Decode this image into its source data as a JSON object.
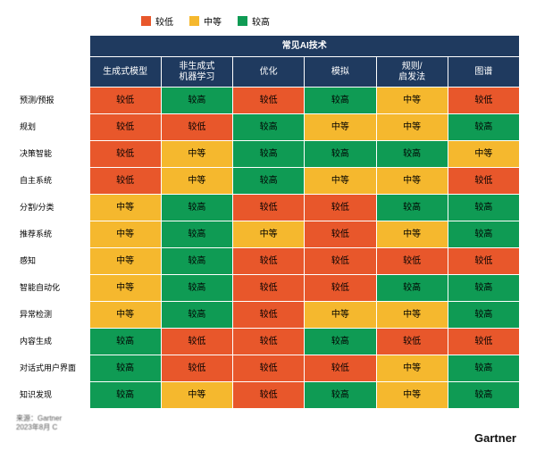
{
  "type": "heatmap-table",
  "colors": {
    "low": "#e8572b",
    "mid": "#f5b82e",
    "high": "#0f9b54",
    "header_bg": "#1f3a5f",
    "header_fg": "#ffffff",
    "border": "#ffffff",
    "background": "#ffffff"
  },
  "fontsize": {
    "cell": 10,
    "rowhead": 9,
    "legend": 10,
    "footer": 8,
    "brand": 13
  },
  "legend": {
    "items": [
      {
        "label": "较低",
        "color": "#e8572b"
      },
      {
        "label": "中等",
        "color": "#f5b82e"
      },
      {
        "label": "较高",
        "color": "#0f9b54"
      }
    ]
  },
  "superheader": "常见AI技术",
  "columns": [
    "生成式模型",
    "非生成式\n机器学习",
    "优化",
    "模拟",
    "规则/\n启发法",
    "图谱"
  ],
  "rows": [
    {
      "label": "预测/预报",
      "cells": [
        "较低",
        "较高",
        "较低",
        "较高",
        "中等",
        "较低"
      ]
    },
    {
      "label": "规划",
      "cells": [
        "较低",
        "较低",
        "较高",
        "中等",
        "中等",
        "较高"
      ]
    },
    {
      "label": "决策智能",
      "cells": [
        "较低",
        "中等",
        "较高",
        "较高",
        "较高",
        "中等"
      ]
    },
    {
      "label": "自主系统",
      "cells": [
        "较低",
        "中等",
        "较高",
        "中等",
        "中等",
        "较低"
      ]
    },
    {
      "label": "分割/分类",
      "cells": [
        "中等",
        "较高",
        "较低",
        "较低",
        "较高",
        "较高"
      ]
    },
    {
      "label": "推荐系统",
      "cells": [
        "中等",
        "较高",
        "中等",
        "较低",
        "中等",
        "较高"
      ]
    },
    {
      "label": "感知",
      "cells": [
        "中等",
        "较高",
        "较低",
        "较低",
        "较低",
        "较低"
      ]
    },
    {
      "label": "智能自动化",
      "cells": [
        "中等",
        "较高",
        "较低",
        "较低",
        "较高",
        "较高"
      ]
    },
    {
      "label": "异常检测",
      "cells": [
        "中等",
        "较高",
        "较低",
        "中等",
        "中等",
        "较高"
      ]
    },
    {
      "label": "内容生成",
      "cells": [
        "较高",
        "较低",
        "较低",
        "较高",
        "较低",
        "较低"
      ]
    },
    {
      "label": "对话式用户界面",
      "cells": [
        "较高",
        "较低",
        "较低",
        "较低",
        "中等",
        "较高"
      ]
    },
    {
      "label": "知识发现",
      "cells": [
        "较高",
        "中等",
        "较低",
        "较高",
        "中等",
        "较高"
      ]
    }
  ],
  "scale": {
    "较低": "#e8572b",
    "中等": "#f5b82e",
    "较高": "#0f9b54"
  },
  "footer": {
    "line1": "来源：Gartner",
    "line2": "2023年8月  C"
  },
  "brand": "Gartner"
}
